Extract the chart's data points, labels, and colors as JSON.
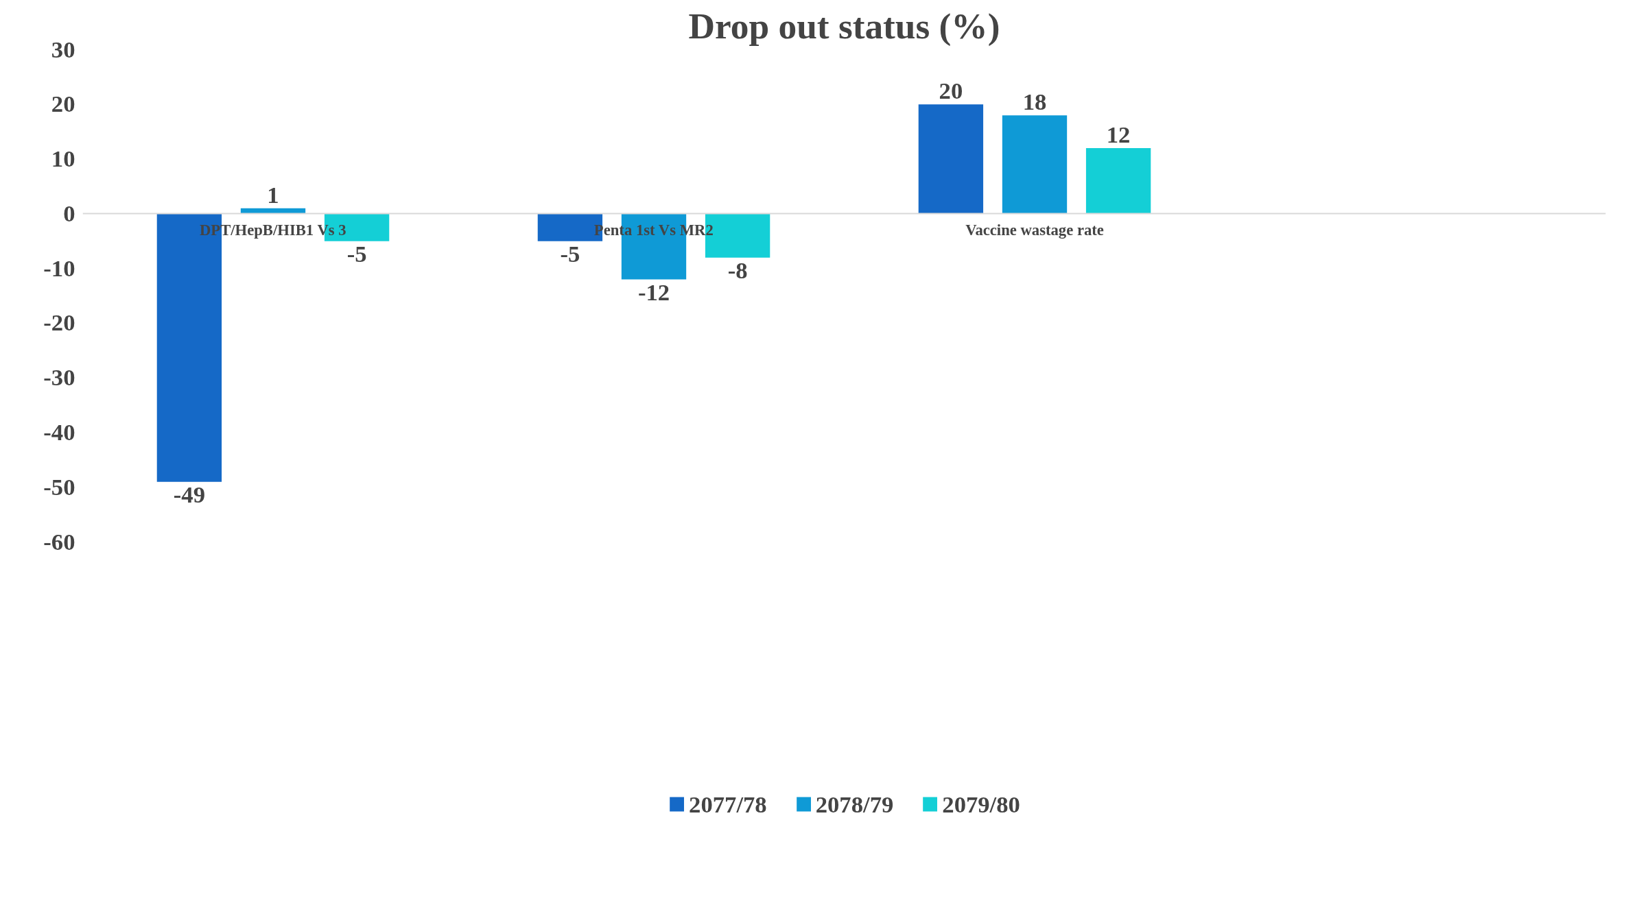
{
  "chart_data": {
    "type": "bar",
    "title": "Drop out status (%)",
    "categories": [
      "DPT/HepB/HIB1 Vs 3",
      "Penta 1st Vs MR2",
      "Vaccine wastage rate",
      null
    ],
    "series": [
      {
        "name": "2077/78",
        "color": "#1569c7",
        "values": [
          -49,
          -5,
          20,
          null
        ]
      },
      {
        "name": "2078/79",
        "color": "#0f9ad6",
        "values": [
          1,
          -12,
          18,
          null
        ]
      },
      {
        "name": "2079/80",
        "color": "#14cfd6",
        "values": [
          -5,
          -8,
          12,
          null
        ]
      }
    ],
    "ylim": [
      -60,
      30
    ],
    "yticks": [
      -60,
      -50,
      -40,
      -30,
      -20,
      -10,
      0,
      10,
      20,
      30
    ],
    "data_labels": true,
    "grid": false,
    "legend": "bottom"
  }
}
